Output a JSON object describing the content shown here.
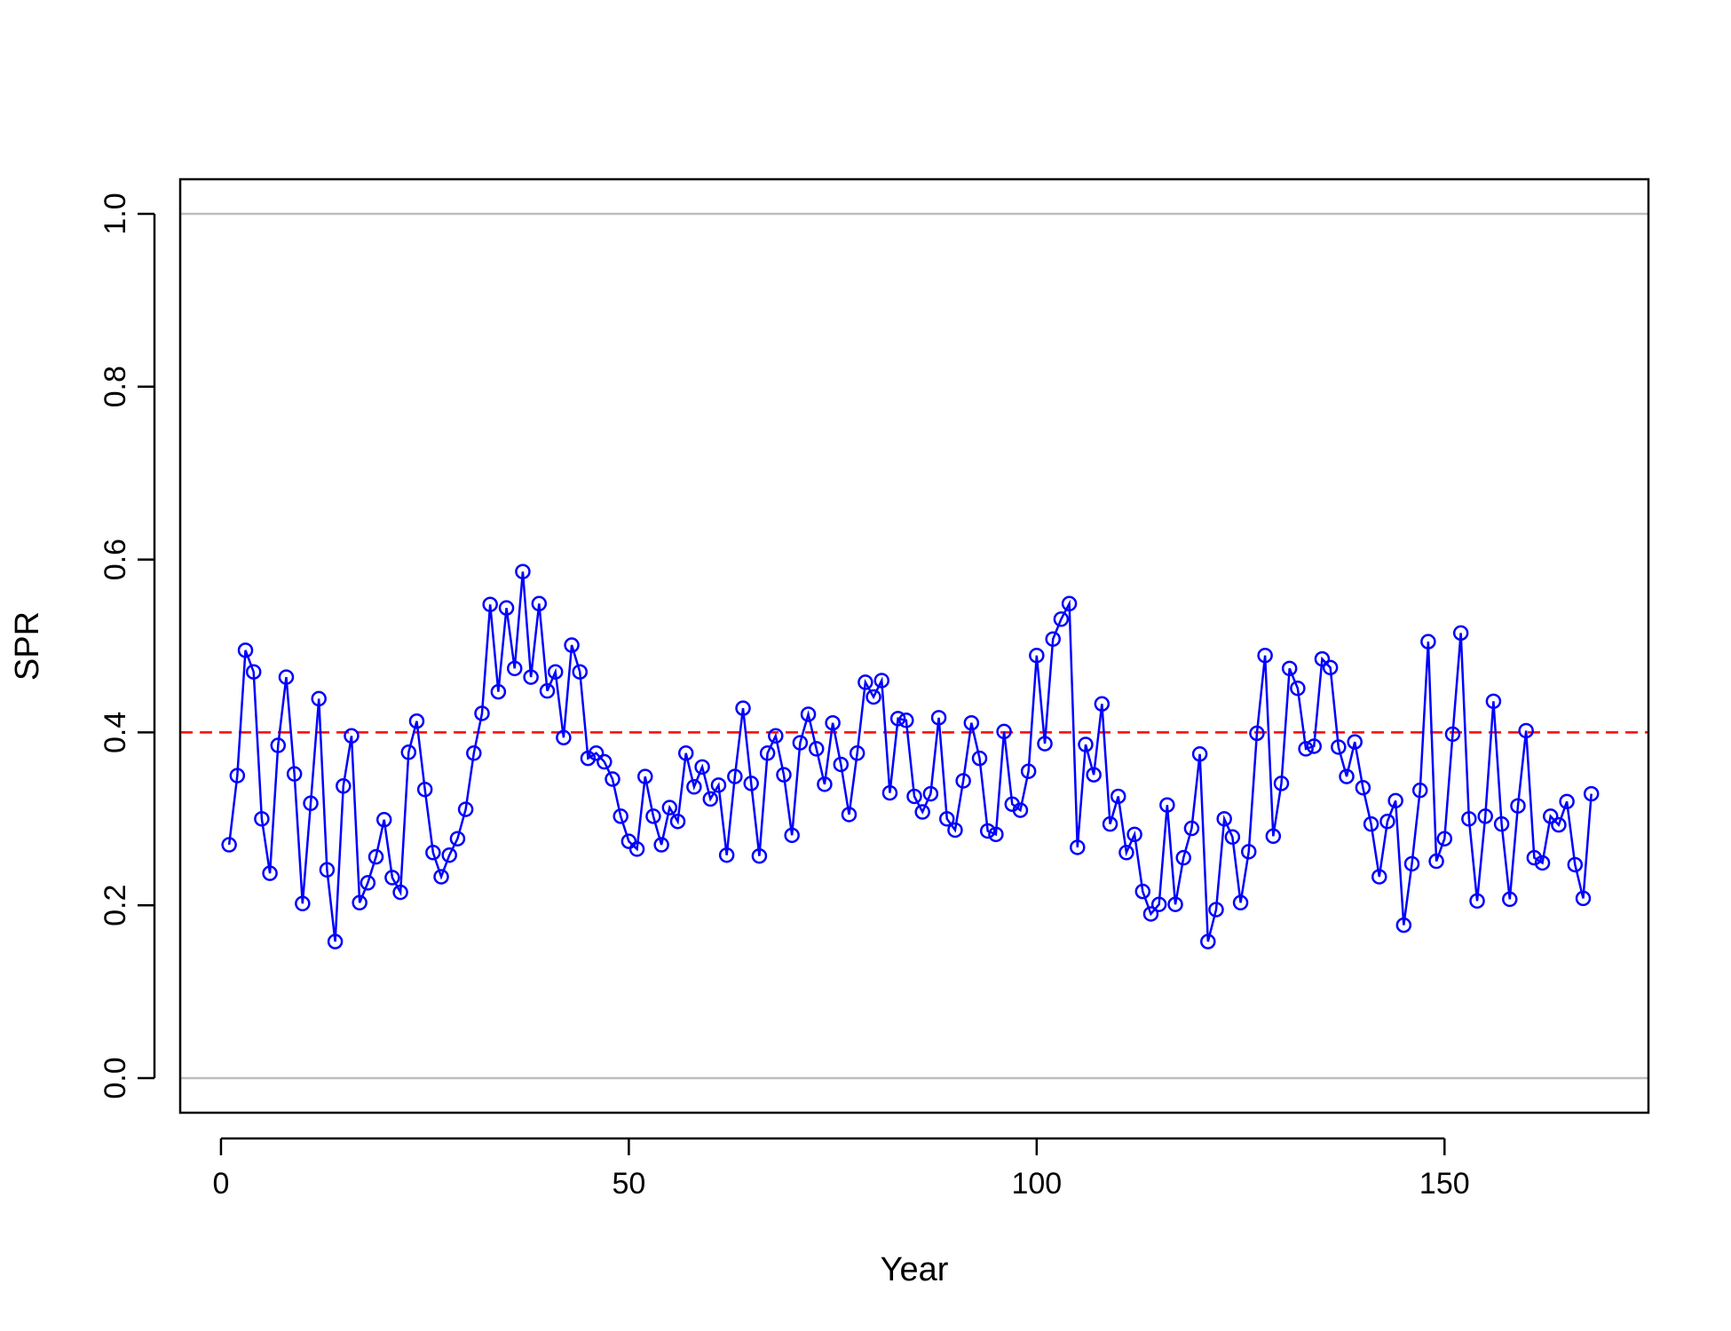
{
  "chart_data": {
    "type": "line",
    "xlabel": "Year",
    "ylabel": "SPR",
    "xlim": [
      -5,
      175
    ],
    "ylim": [
      -0.04,
      1.04
    ],
    "x_ticks": [
      0,
      50,
      100,
      150
    ],
    "y_ticks": [
      0.0,
      0.2,
      0.4,
      0.6,
      0.8,
      1.0
    ],
    "x_tick_labels": [
      "0",
      "50",
      "100",
      "150"
    ],
    "y_tick_labels": [
      "0.0",
      "0.2",
      "0.4",
      "0.6",
      "0.8",
      "1.0"
    ],
    "reference_lines": [
      {
        "y": 0.0,
        "color": "#bebebe",
        "style": "solid"
      },
      {
        "y": 1.0,
        "color": "#bebebe",
        "style": "solid"
      },
      {
        "y": 0.4,
        "color": "#ff0000",
        "style": "dashed"
      }
    ],
    "grid": false,
    "series": [
      {
        "color": "#0000ff",
        "marker": "open-circle",
        "x": [
          1,
          2,
          3,
          4,
          5,
          6,
          7,
          8,
          9,
          10,
          11,
          12,
          13,
          14,
          15,
          16,
          17,
          18,
          19,
          20,
          21,
          22,
          23,
          24,
          25,
          26,
          27,
          28,
          29,
          30,
          31,
          32,
          33,
          34,
          35,
          36,
          37,
          38,
          39,
          40,
          41,
          42,
          43,
          44,
          45,
          46,
          47,
          48,
          49,
          50,
          51,
          52,
          53,
          54,
          55,
          56,
          57,
          58,
          59,
          60,
          61,
          62,
          63,
          64,
          65,
          66,
          67,
          68,
          69,
          70,
          71,
          72,
          73,
          74,
          75,
          76,
          77,
          78,
          79,
          80,
          81,
          82,
          83,
          84,
          85,
          86,
          87,
          88,
          89,
          90,
          91,
          92,
          93,
          94,
          95,
          96,
          97,
          98,
          99,
          100,
          101,
          102,
          103,
          104,
          105,
          106,
          107,
          108,
          109,
          110,
          111,
          112,
          113,
          114,
          115,
          116,
          117,
          118,
          119,
          120,
          121,
          122,
          123,
          124,
          125,
          126,
          127,
          128,
          129,
          130,
          131,
          132,
          133,
          134,
          135,
          136,
          137,
          138,
          139,
          140,
          141,
          142,
          143,
          144,
          145,
          146,
          147,
          148,
          149,
          150,
          151,
          152,
          153,
          154,
          155,
          156,
          157,
          158,
          159,
          160,
          161,
          162,
          163,
          164,
          165,
          166,
          167,
          168
        ],
        "values": [
          0.27,
          0.35,
          0.495,
          0.47,
          0.3,
          0.237,
          0.385,
          0.464,
          0.352,
          0.202,
          0.318,
          0.439,
          0.241,
          0.158,
          0.338,
          0.396,
          0.203,
          0.226,
          0.256,
          0.299,
          0.232,
          0.215,
          0.377,
          0.413,
          0.334,
          0.261,
          0.233,
          0.258,
          0.277,
          0.311,
          0.376,
          0.422,
          0.548,
          0.447,
          0.544,
          0.474,
          0.586,
          0.464,
          0.549,
          0.448,
          0.47,
          0.394,
          0.501,
          0.47,
          0.37,
          0.376,
          0.366,
          0.346,
          0.303,
          0.274,
          0.265,
          0.349,
          0.303,
          0.27,
          0.313,
          0.297,
          0.376,
          0.337,
          0.36,
          0.323,
          0.339,
          0.258,
          0.349,
          0.428,
          0.341,
          0.257,
          0.376,
          0.396,
          0.351,
          0.281,
          0.388,
          0.421,
          0.381,
          0.34,
          0.411,
          0.363,
          0.305,
          0.376,
          0.458,
          0.441,
          0.46,
          0.33,
          0.416,
          0.414,
          0.326,
          0.308,
          0.329,
          0.417,
          0.3,
          0.287,
          0.344,
          0.411,
          0.37,
          0.286,
          0.282,
          0.401,
          0.317,
          0.31,
          0.355,
          0.489,
          0.387,
          0.508,
          0.531,
          0.549,
          0.267,
          0.386,
          0.351,
          0.433,
          0.294,
          0.326,
          0.261,
          0.282,
          0.216,
          0.19,
          0.201,
          0.316,
          0.201,
          0.255,
          0.289,
          0.375,
          0.158,
          0.195,
          0.3,
          0.279,
          0.203,
          0.262,
          0.399,
          0.489,
          0.28,
          0.341,
          0.474,
          0.451,
          0.381,
          0.384,
          0.485,
          0.475,
          0.383,
          0.349,
          0.389,
          0.336,
          0.294,
          0.233,
          0.297,
          0.321,
          0.177,
          0.248,
          0.333,
          0.505,
          0.251,
          0.277,
          0.398,
          0.515,
          0.3,
          0.205,
          0.303,
          0.436,
          0.294,
          0.207,
          0.315,
          0.402,
          0.255,
          0.249,
          0.303,
          0.293,
          0.32,
          0.247,
          0.208,
          0.329
        ]
      }
    ]
  }
}
